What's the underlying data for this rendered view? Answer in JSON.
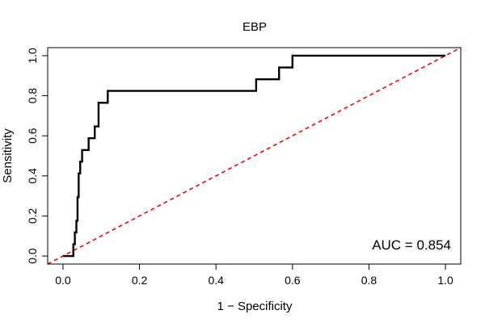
{
  "chart_data": {
    "type": "line",
    "title": "EBP",
    "xlabel": "1 − Specificity",
    "ylabel": "Sensitivity",
    "xlim": [
      -0.04,
      1.04
    ],
    "ylim": [
      -0.04,
      1.04
    ],
    "xticks": [
      0.0,
      0.2,
      0.4,
      0.6,
      0.8,
      1.0
    ],
    "xtick_labels": [
      "0.0",
      "0.2",
      "0.4",
      "0.6",
      "0.8",
      "1.0"
    ],
    "yticks": [
      0.0,
      0.2,
      0.4,
      0.6,
      0.8,
      1.0
    ],
    "ytick_labels": [
      "0.0",
      "0.2",
      "0.4",
      "0.6",
      "0.8",
      "1.0"
    ],
    "grid": false,
    "annotation": "AUC = 0.854",
    "series": [
      {
        "color": "#000000",
        "style": "solid-step",
        "x": [
          0.0,
          0.027,
          0.027,
          0.031,
          0.031,
          0.035,
          0.035,
          0.038,
          0.038,
          0.041,
          0.041,
          0.045,
          0.045,
          0.05,
          0.05,
          0.053,
          0.053,
          0.067,
          0.067,
          0.083,
          0.083,
          0.093,
          0.093,
          0.117,
          0.117,
          0.505,
          0.505,
          0.565,
          0.565,
          0.6,
          0.6,
          1.0
        ],
        "y": [
          0.0,
          0.0,
          0.059,
          0.059,
          0.118,
          0.118,
          0.176,
          0.176,
          0.294,
          0.294,
          0.412,
          0.412,
          0.471,
          0.471,
          0.529,
          0.529,
          0.529,
          0.529,
          0.588,
          0.588,
          0.647,
          0.647,
          0.765,
          0.765,
          0.824,
          0.824,
          0.882,
          0.882,
          0.941,
          0.941,
          1.0,
          1.0
        ]
      },
      {
        "color": "#ff0000",
        "style": "dashed",
        "x": [
          -0.04,
          1.04
        ],
        "y": [
          -0.04,
          1.04
        ]
      }
    ]
  }
}
